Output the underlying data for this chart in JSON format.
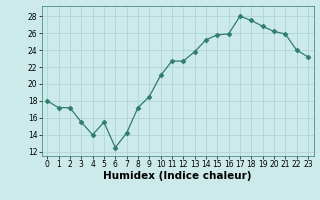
{
  "x": [
    0,
    1,
    2,
    3,
    4,
    5,
    6,
    7,
    8,
    9,
    10,
    11,
    12,
    13,
    14,
    15,
    16,
    17,
    18,
    19,
    20,
    21,
    22,
    23
  ],
  "y": [
    18,
    17.2,
    17.2,
    15.5,
    14,
    15.5,
    12.5,
    14.2,
    17.2,
    18.5,
    21,
    22.7,
    22.7,
    23.8,
    25.2,
    25.8,
    25.9,
    28,
    27.5,
    26.8,
    26.2,
    25.9,
    24,
    23.2
  ],
  "line_color": "#2e7d6e",
  "marker": "D",
  "marker_size": 2.5,
  "bg_color": "#cdeaea",
  "grid_color": "#b0d5d5",
  "xlabel": "Humidex (Indice chaleur)",
  "xlim": [
    -0.5,
    23.5
  ],
  "ylim": [
    11.5,
    29.2
  ],
  "yticks": [
    12,
    14,
    16,
    18,
    20,
    22,
    24,
    26,
    28
  ],
  "xticks": [
    0,
    1,
    2,
    3,
    4,
    5,
    6,
    7,
    8,
    9,
    10,
    11,
    12,
    13,
    14,
    15,
    16,
    17,
    18,
    19,
    20,
    21,
    22,
    23
  ],
  "tick_fontsize": 5.5,
  "xlabel_fontsize": 7.5
}
